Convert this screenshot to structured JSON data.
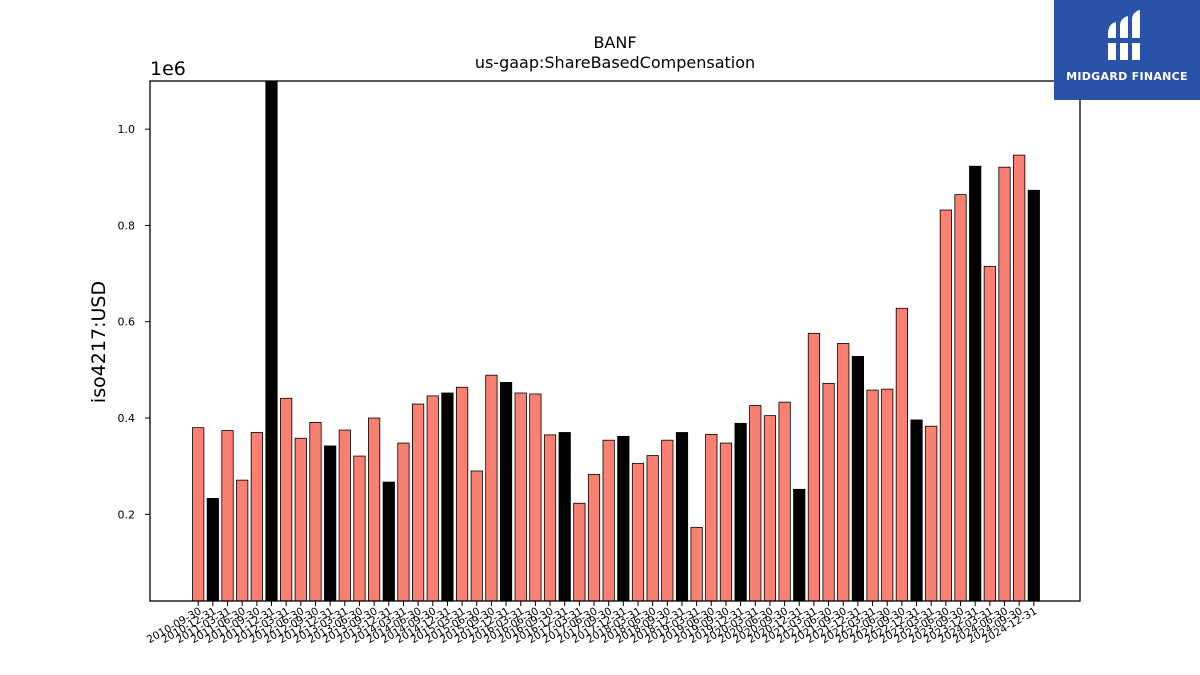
{
  "chart_data": {
    "type": "bar",
    "title": "BANF",
    "subtitle": "us-gaap:ShareBasedCompensation",
    "ylabel": "iso4217:USD",
    "xlabel": "",
    "y_scale_label": "1e6",
    "ylim": [
      20000,
      1100000
    ],
    "yticks": [
      200000,
      400000,
      600000,
      800000,
      1000000
    ],
    "ytick_labels": [
      "0.2",
      "0.4",
      "0.6",
      "0.8",
      "1.0"
    ],
    "grid": false,
    "colors": {
      "quarter": "#fa8072",
      "year_end": "#000000"
    },
    "categories": [
      "2010-09-30",
      "2010-12-31",
      "2011-03-31",
      "2011-06-30",
      "2011-09-30",
      "2011-12-31",
      "2012-03-31",
      "2012-06-30",
      "2012-09-30",
      "2012-12-31",
      "2013-03-31",
      "2013-06-30",
      "2013-09-30",
      "2013-12-31",
      "2014-03-31",
      "2014-06-30",
      "2014-09-30",
      "2014-12-31",
      "2015-03-31",
      "2015-06-30",
      "2015-09-30",
      "2015-12-31",
      "2016-03-31",
      "2016-06-30",
      "2016-09-30",
      "2016-12-31",
      "2017-03-31",
      "2017-06-30",
      "2017-09-30",
      "2017-12-31",
      "2018-03-31",
      "2018-06-30",
      "2018-09-30",
      "2018-12-31",
      "2019-03-31",
      "2019-06-30",
      "2019-09-30",
      "2019-12-31",
      "2020-03-31",
      "2020-06-30",
      "2020-09-30",
      "2020-12-31",
      "2021-03-31",
      "2021-06-30",
      "2021-09-30",
      "2021-12-31",
      "2022-03-31",
      "2022-06-30",
      "2022-09-30",
      "2022-12-31",
      "2023-03-31",
      "2023-06-30",
      "2023-09-30",
      "2023-12-31",
      "2024-03-31",
      "2024-06-30",
      "2024-09-30",
      "2024-12-31"
    ],
    "values": [
      380000,
      233000,
      374000,
      271000,
      370000,
      1100000,
      441000,
      358000,
      391000,
      342000,
      375000,
      321000,
      400000,
      267000,
      348000,
      429000,
      446000,
      452000,
      464000,
      290000,
      489000,
      474000,
      452000,
      450000,
      365000,
      370000,
      223000,
      283000,
      354000,
      362000,
      306000,
      322000,
      354000,
      370000,
      173000,
      366000,
      348000,
      389000,
      426000,
      405000,
      433000,
      252000,
      576000,
      472000,
      555000,
      528000,
      458000,
      460000,
      628000,
      396000,
      383000,
      832000,
      864000,
      923000,
      715000,
      921000,
      946000,
      873000
    ],
    "is_year_end": [
      false,
      true,
      false,
      false,
      false,
      true,
      false,
      false,
      false,
      true,
      false,
      false,
      false,
      true,
      false,
      false,
      false,
      true,
      false,
      false,
      false,
      true,
      false,
      false,
      false,
      true,
      false,
      false,
      false,
      true,
      false,
      false,
      false,
      true,
      false,
      false,
      false,
      true,
      false,
      false,
      false,
      true,
      false,
      false,
      false,
      true,
      false,
      false,
      false,
      true,
      false,
      false,
      false,
      true,
      false,
      false,
      false,
      true
    ]
  },
  "logo": {
    "text": "MIDGARD FINANCE"
  }
}
